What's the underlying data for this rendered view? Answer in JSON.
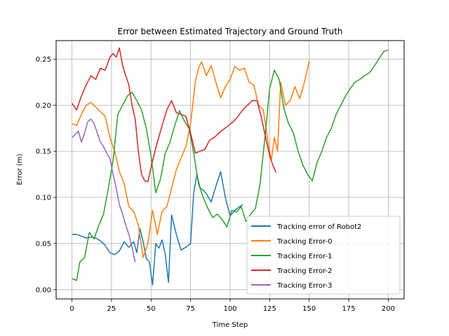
{
  "chart_data": {
    "type": "line",
    "title": "Error between Estimated Trajectory and Ground Truth",
    "xlabel": "Time Step",
    "ylabel": "Error (m)",
    "xlim": [
      -10,
      210
    ],
    "ylim": [
      -0.01,
      0.27
    ],
    "xticks": [
      0,
      25,
      50,
      75,
      100,
      125,
      150,
      175,
      200
    ],
    "yticks": [
      0.0,
      0.05,
      0.1,
      0.15,
      0.2,
      0.25
    ],
    "ytick_labels": [
      "0.00",
      "0.05",
      "0.10",
      "0.15",
      "0.20",
      "0.25"
    ],
    "grid": true,
    "legend_position": "lower-right",
    "series": [
      {
        "name": "Tracking error of Robot2",
        "color": "#1f77b4",
        "x": [
          0,
          3,
          6,
          9,
          12,
          15,
          18,
          21,
          24,
          27,
          30,
          33,
          36,
          39,
          41,
          43,
          45,
          47,
          49,
          51,
          53,
          55,
          57,
          59,
          61,
          63,
          66,
          69,
          72,
          75,
          77,
          79,
          81,
          83,
          85,
          88,
          91,
          94,
          97,
          100,
          103,
          106,
          108
        ],
        "y": [
          0.06,
          0.06,
          0.058,
          0.056,
          0.057,
          0.056,
          0.053,
          0.048,
          0.04,
          0.038,
          0.042,
          0.052,
          0.046,
          0.052,
          0.04,
          0.066,
          0.052,
          0.034,
          0.03,
          0.005,
          0.05,
          0.045,
          0.054,
          0.038,
          0.008,
          0.081,
          0.06,
          0.043,
          0.046,
          0.05,
          0.105,
          0.125,
          0.11,
          0.108,
          0.104,
          0.095,
          0.112,
          0.128,
          0.1,
          0.08,
          0.086,
          0.09,
          0.092
        ]
      },
      {
        "name": "Tracking Error-0",
        "color": "#ff7f0e",
        "x": [
          0,
          3,
          6,
          9,
          12,
          15,
          18,
          21,
          24,
          27,
          30,
          33,
          36,
          39,
          42,
          45,
          48,
          51,
          54,
          57,
          60,
          63,
          66,
          69,
          72,
          75,
          78,
          80,
          82,
          85,
          88,
          91,
          94,
          97,
          100,
          103,
          106,
          109,
          112,
          115,
          118,
          121,
          124,
          126,
          128,
          130,
          132,
          135,
          138,
          141,
          144,
          147,
          150
        ],
        "y": [
          0.18,
          0.178,
          0.19,
          0.2,
          0.203,
          0.198,
          0.193,
          0.188,
          0.165,
          0.15,
          0.128,
          0.115,
          0.09,
          0.085,
          0.07,
          0.035,
          0.05,
          0.086,
          0.06,
          0.085,
          0.09,
          0.11,
          0.13,
          0.143,
          0.155,
          0.18,
          0.225,
          0.24,
          0.247,
          0.232,
          0.243,
          0.225,
          0.208,
          0.22,
          0.228,
          0.242,
          0.238,
          0.24,
          0.225,
          0.222,
          0.2,
          0.195,
          0.16,
          0.14,
          0.165,
          0.15,
          0.225,
          0.2,
          0.205,
          0.22,
          0.207,
          0.225,
          0.248
        ]
      },
      {
        "name": "Tracking Error-1",
        "color": "#2ca02c",
        "x": [
          0,
          3,
          5,
          8,
          11,
          14,
          17,
          20,
          23,
          26,
          29,
          32,
          35,
          38,
          41,
          44,
          47,
          50,
          53,
          56,
          59,
          62,
          65,
          68,
          71,
          74,
          77,
          80,
          83,
          86,
          89,
          92,
          95,
          98,
          101,
          104,
          107,
          110,
          113,
          116,
          119,
          122,
          125,
          128,
          131,
          134,
          137,
          140,
          143,
          146,
          149,
          152,
          155,
          158,
          161,
          164,
          167,
          170,
          173,
          176,
          179,
          182,
          185,
          188,
          191,
          194,
          197,
          200
        ],
        "y": [
          0.012,
          0.01,
          0.03,
          0.035,
          0.062,
          0.055,
          0.07,
          0.082,
          0.11,
          0.14,
          0.19,
          0.2,
          0.21,
          0.214,
          0.205,
          0.195,
          0.175,
          0.145,
          0.105,
          0.12,
          0.148,
          0.16,
          0.178,
          0.194,
          0.183,
          0.175,
          0.148,
          0.115,
          0.1,
          0.088,
          0.078,
          0.082,
          0.076,
          0.068,
          0.086,
          0.084,
          0.09,
          0.074,
          0.082,
          0.088,
          0.115,
          0.165,
          0.218,
          0.238,
          0.228,
          0.196,
          0.18,
          0.17,
          0.15,
          0.135,
          0.125,
          0.118,
          0.138,
          0.15,
          0.165,
          0.175,
          0.19,
          0.2,
          0.21,
          0.218,
          0.225,
          0.228,
          0.232,
          0.235,
          0.242,
          0.25,
          0.258,
          0.26
        ]
      },
      {
        "name": "Tracking Error-2",
        "color": "#d62728",
        "x": [
          0,
          3,
          6,
          9,
          12,
          15,
          18,
          21,
          24,
          26,
          28,
          30,
          32,
          34,
          36,
          38,
          40,
          42,
          44,
          46,
          48,
          51,
          54,
          57,
          60,
          63,
          66,
          69,
          72,
          75,
          78,
          81,
          84,
          87,
          90,
          93,
          96,
          99,
          102,
          105,
          108,
          111,
          114,
          117,
          120,
          123,
          125,
          127,
          129
        ],
        "y": [
          0.202,
          0.195,
          0.21,
          0.222,
          0.232,
          0.228,
          0.24,
          0.238,
          0.252,
          0.256,
          0.252,
          0.262,
          0.243,
          0.232,
          0.222,
          0.2,
          0.185,
          0.15,
          0.125,
          0.118,
          0.117,
          0.14,
          0.16,
          0.178,
          0.195,
          0.205,
          0.192,
          0.19,
          0.188,
          0.17,
          0.148,
          0.15,
          0.152,
          0.162,
          0.165,
          0.17,
          0.174,
          0.178,
          0.182,
          0.188,
          0.195,
          0.2,
          0.205,
          0.205,
          0.185,
          0.16,
          0.145,
          0.135,
          0.127
        ]
      },
      {
        "name": "Tracking Error-3",
        "color": "#9467bd",
        "x": [
          0,
          2,
          4,
          6,
          8,
          10,
          12,
          14,
          16,
          18,
          20,
          22,
          24,
          26,
          28,
          30,
          32,
          34,
          36,
          38,
          40
        ],
        "y": [
          0.165,
          0.168,
          0.172,
          0.16,
          0.17,
          0.182,
          0.185,
          0.18,
          0.17,
          0.16,
          0.155,
          0.148,
          0.142,
          0.125,
          0.11,
          0.092,
          0.082,
          0.07,
          0.06,
          0.046,
          0.03
        ]
      }
    ]
  }
}
